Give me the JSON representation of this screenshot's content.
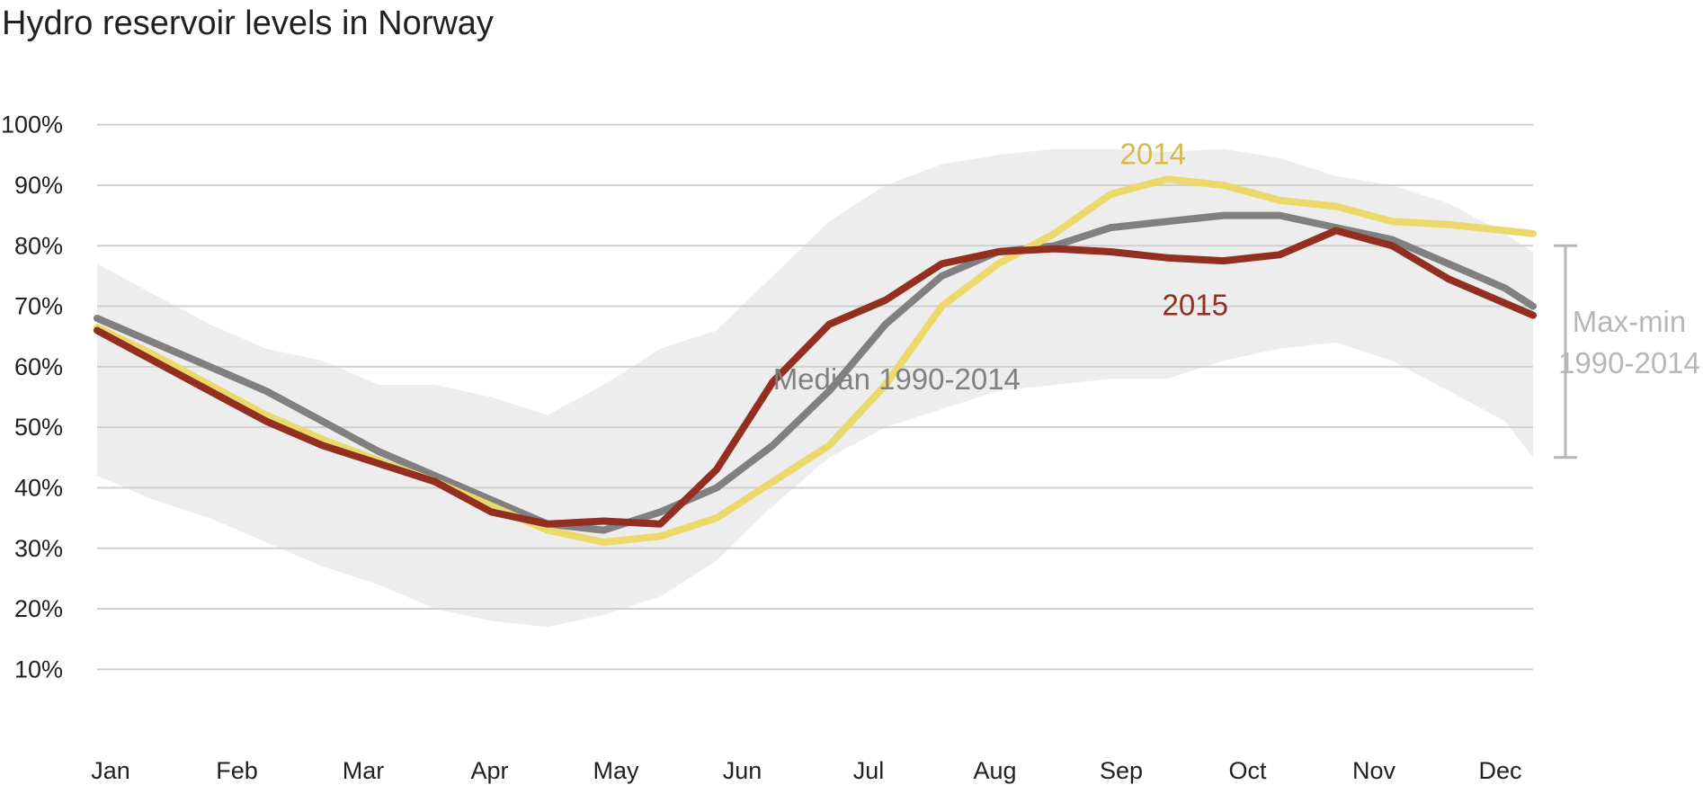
{
  "chart_data": {
    "type": "line",
    "title": "Hydro reservoir levels in Norway",
    "xlabel": "",
    "ylabel": "",
    "x_tick_labels": [
      "Jan",
      "Feb",
      "Mar",
      "Apr",
      "May",
      "Jun",
      "Jul",
      "Aug",
      "Sep",
      "Oct",
      "Nov",
      "Dec"
    ],
    "x_domain": [
      1,
      52
    ],
    "y_ticks": [
      10,
      20,
      30,
      40,
      50,
      60,
      70,
      80,
      90,
      100
    ],
    "y_tick_labels": [
      "10%",
      "20%",
      "30%",
      "40%",
      "50%",
      "60%",
      "70%",
      "80%",
      "90%",
      "100%"
    ],
    "ylim": [
      5,
      105
    ],
    "grid": true,
    "legend": "none",
    "band": {
      "name": "Max-min 1990-2014",
      "color": "#ededed",
      "weeks": [
        1,
        3,
        5,
        7,
        9,
        11,
        13,
        15,
        17,
        19,
        21,
        23,
        25,
        27,
        29,
        31,
        33,
        35,
        37,
        39,
        41,
        43,
        45,
        47,
        49,
        51,
        52
      ],
      "max": [
        77,
        72,
        67,
        63,
        61,
        57,
        57,
        55,
        52,
        57,
        63,
        66,
        75,
        84,
        90,
        93.5,
        95,
        96,
        96,
        95.5,
        96,
        94.5,
        91.5,
        90,
        87,
        82,
        79
      ],
      "min": [
        42,
        38,
        35,
        31,
        27,
        24,
        20,
        18,
        17,
        19,
        22,
        28,
        37,
        45,
        50,
        53,
        56,
        57,
        58,
        58,
        61,
        63,
        64,
        61,
        56,
        51,
        45
      ]
    },
    "series": [
      {
        "name": "Median 1990-2014",
        "color": "#808080",
        "x": [
          1,
          3,
          5,
          7,
          9,
          11,
          13,
          15,
          17,
          19,
          21,
          23,
          25,
          27,
          29,
          31,
          33,
          35,
          37,
          39,
          41,
          43,
          45,
          47,
          49,
          51,
          52
        ],
        "values": [
          68,
          64,
          60,
          56,
          51,
          46,
          42,
          38,
          34,
          33,
          36,
          40,
          47,
          56,
          67,
          75,
          79,
          80,
          83,
          84,
          85,
          85,
          83,
          81,
          77,
          73,
          70
        ]
      },
      {
        "name": "2014",
        "color": "#ecd96b",
        "x": [
          1,
          3,
          5,
          7,
          9,
          11,
          13,
          15,
          17,
          19,
          21,
          23,
          25,
          27,
          29,
          31,
          33,
          35,
          37,
          39,
          41,
          43,
          45,
          47,
          49,
          51,
          52
        ],
        "values": [
          66.5,
          62,
          57,
          52,
          48,
          44.5,
          41,
          37,
          33,
          31,
          32,
          35,
          41,
          47,
          57,
          70,
          77,
          82,
          88.5,
          91,
          90,
          87.5,
          86.5,
          84,
          83.5,
          82.5,
          82
        ]
      },
      {
        "name": "2015",
        "color": "#922f20",
        "x": [
          1,
          3,
          5,
          7,
          9,
          11,
          13,
          15,
          17,
          19,
          21,
          23,
          25,
          27,
          29,
          31,
          33,
          35,
          37,
          39,
          41,
          43,
          45,
          47,
          49,
          51,
          52
        ],
        "values": [
          66,
          61,
          56,
          51,
          47,
          44,
          41,
          36,
          34,
          34.5,
          34,
          43,
          57.5,
          67,
          71,
          77,
          79,
          79.5,
          79,
          78,
          77.5,
          78.5,
          82.5,
          80,
          74.5,
          70.5,
          68.5
        ]
      }
    ],
    "annotations": [
      {
        "text": "2014",
        "color": "#d4bb4a",
        "x": 38.5,
        "y": 93.5
      },
      {
        "text": "2015",
        "color": "#922f20",
        "x": 40,
        "y": 68.5
      },
      {
        "text": "Median 1990-2014",
        "color": "#808080",
        "x": 29.4,
        "y": 56.3
      }
    ],
    "range_bracket": {
      "label_line1": "Max-min",
      "label_line2": "1990-2014",
      "color": "#b7b7b7",
      "from": 45,
      "to": 80
    }
  }
}
